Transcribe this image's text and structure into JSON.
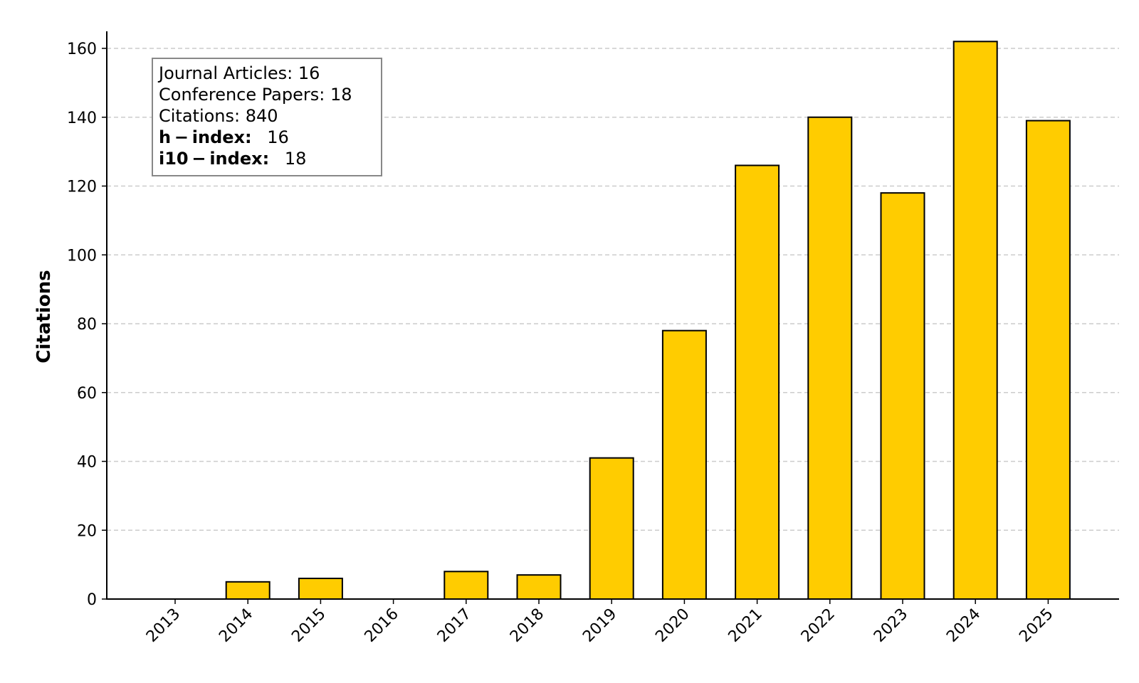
{
  "chart_data": {
    "type": "bar",
    "categories": [
      "2013",
      "2014",
      "2015",
      "2016",
      "2017",
      "2018",
      "2019",
      "2020",
      "2021",
      "2022",
      "2023",
      "2024",
      "2025"
    ],
    "values": [
      0,
      5,
      6,
      0,
      8,
      7,
      41,
      78,
      126,
      140,
      118,
      162,
      139
    ],
    "ylabel": "Citations",
    "xlabel": "",
    "ylim": [
      0,
      165
    ],
    "yticks": [
      0,
      20,
      40,
      60,
      80,
      100,
      120,
      140,
      160
    ],
    "grid": "horizontal dashed",
    "bar_color": "#FFCC00",
    "bar_edge_color": "#000000"
  },
  "info_box": {
    "journal_articles": "Journal Articles: 16",
    "conference_papers": "Conference Papers: 18",
    "citations": "Citations: 840",
    "h_index_label": "h − index:",
    "h_index_value": "16",
    "i10_index_label": "i10 − index:",
    "i10_index_value": "18"
  }
}
